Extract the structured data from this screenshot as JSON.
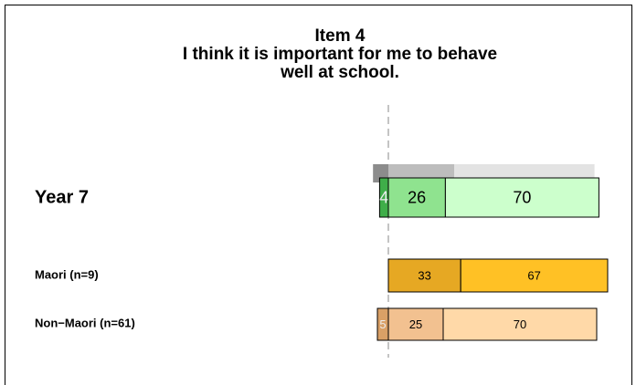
{
  "chart_data": {
    "type": "diverging-bar",
    "title": [
      "Item 4",
      "I think it is important for me to behave",
      "well at school."
    ],
    "xlim": [
      -10,
      105
    ],
    "rows": [
      {
        "label": "Year 7",
        "values": [
          4,
          26,
          70
        ],
        "colors": [
          "#3fae49",
          "#8fe38f",
          "#ccffcc"
        ],
        "reference": [
          7,
          30,
          64
        ],
        "reference_colors": [
          "#8c8c8c",
          "#bdbdbd",
          "#e3e3e3"
        ]
      },
      {
        "label": "Maori (n=9)",
        "values": [
          null,
          33,
          67
        ],
        "colors": [
          "#c98a2e",
          "#e6a823",
          "#ffc125"
        ]
      },
      {
        "label": "Non−Maori (n=61)",
        "values": [
          5,
          25,
          70
        ],
        "colors": [
          "#d9a066",
          "#f2c190",
          "#ffd9a8"
        ]
      }
    ]
  }
}
